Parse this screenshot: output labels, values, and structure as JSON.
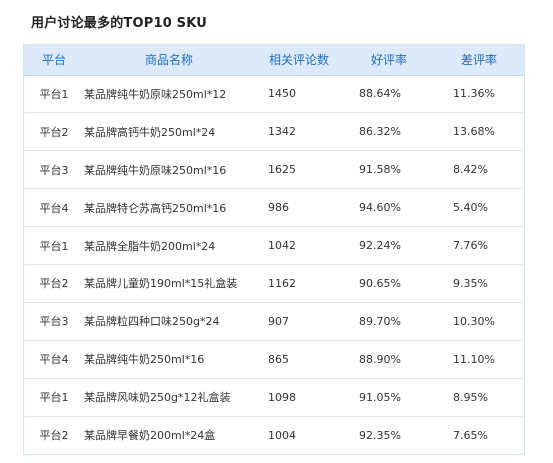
{
  "title": "用户讨论最多的TOP10 SKU",
  "table": {
    "headers": {
      "platform": "平台",
      "product": "商品名称",
      "count": "相关评论数",
      "good_rate": "好评率",
      "bad_rate": "差评率"
    },
    "rows": [
      {
        "platform": "平台1",
        "product": "某品牌纯牛奶原味250ml*12",
        "count": "1450",
        "good_rate": "88.64%",
        "bad_rate": "11.36%"
      },
      {
        "platform": "平台2",
        "product": "某品牌高钙牛奶250ml*24",
        "count": "1342",
        "good_rate": "86.32%",
        "bad_rate": "13.68%"
      },
      {
        "platform": "平台3",
        "product": "某品牌纯牛奶原味250ml*16",
        "count": "1625",
        "good_rate": "91.58%",
        "bad_rate": "8.42%"
      },
      {
        "platform": "平台4",
        "product": "某品牌特仑苏高钙250ml*16",
        "count": "986",
        "good_rate": "94.60%",
        "bad_rate": "5.40%"
      },
      {
        "platform": "平台1",
        "product": "某品牌全脂牛奶200ml*24",
        "count": "1042",
        "good_rate": "92.24%",
        "bad_rate": "7.76%"
      },
      {
        "platform": "平台2",
        "product": "某品牌儿童奶190ml*15礼盒装",
        "count": "1162",
        "good_rate": "90.65%",
        "bad_rate": "9.35%"
      },
      {
        "platform": "平台3",
        "product": "某品牌粒四种口味250g*24",
        "count": "907",
        "good_rate": "89.70%",
        "bad_rate": "10.30%"
      },
      {
        "platform": "平台4",
        "product": "某品牌纯牛奶250ml*16",
        "count": "865",
        "good_rate": "88.90%",
        "bad_rate": "11.10%"
      },
      {
        "platform": "平台1",
        "product": "某品牌风味奶250g*12礼盒装",
        "count": "1098",
        "good_rate": "91.05%",
        "bad_rate": "8.95%"
      },
      {
        "platform": "平台2",
        "product": "某品牌早餐奶200ml*24盒",
        "count": "1004",
        "good_rate": "92.35%",
        "bad_rate": "7.65%"
      }
    ]
  }
}
